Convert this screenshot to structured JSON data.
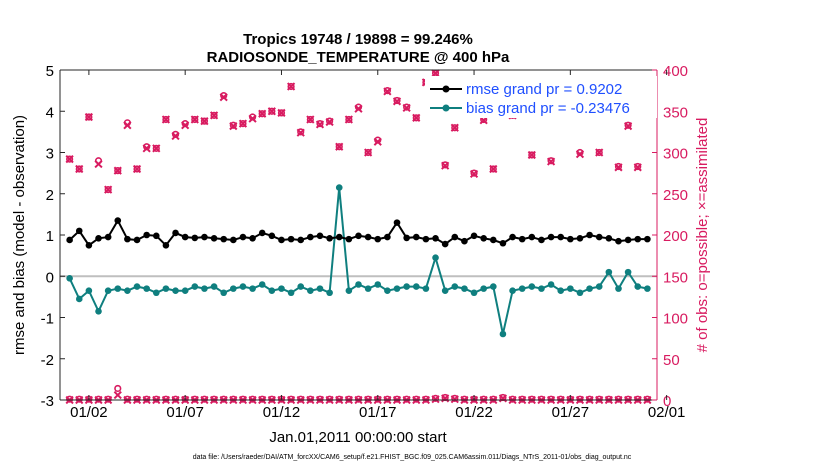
{
  "chart_data": {
    "type": "line",
    "title_line1": "Tropics 19748 / 19898 = 99.246%",
    "title_line2": "RADIOSONDE_TEMPERATURE @ 400 hPa",
    "xlabel": "Jan.01,2011 00:00:00 start",
    "ylabel_left": "rmse and bias (model - observation)",
    "ylabel_right": "# of obs: o=possible; ×=assimilated",
    "footnote": "data file: /Users/raeder/DAI/ATM_forcXX/CAM6_setup/f.e21.FHIST_BGC.f09_025.CAM6assim.011/Diags_NTrS_2011-01/obs_diag_output.nc",
    "xlim": [
      0.5,
      31.5
    ],
    "ylim_left": [
      -3,
      5
    ],
    "ylim_right": [
      0,
      400
    ],
    "x_tick_values": [
      2,
      7,
      12,
      17,
      22,
      27,
      32
    ],
    "x_tick_labels": [
      "01/02",
      "01/07",
      "01/12",
      "01/17",
      "01/22",
      "01/27",
      "02/01"
    ],
    "y_left_ticks": [
      "-3",
      "-2",
      "-1",
      "0",
      "1",
      "2",
      "3",
      "4",
      "5"
    ],
    "y_right_ticks": [
      "0",
      "50",
      "100",
      "150",
      "200",
      "250",
      "300",
      "350",
      "400"
    ],
    "colors": {
      "rmse": "#000000",
      "bias": "#0f7f7f",
      "nobs": "#d81b60",
      "axis_right": "#d81b60",
      "zero_line": "#bfbfbf",
      "legend_text": "#1f4fff"
    },
    "legend": [
      {
        "name": "rmse grand pr = 0.9202",
        "key": "rmse"
      },
      {
        "name": "bias grand pr = -0.23476",
        "key": "bias"
      }
    ],
    "series": [
      {
        "name": "rmse",
        "axis": "left",
        "x": [
          1.0,
          1.5,
          2.0,
          2.5,
          3.0,
          3.5,
          4.0,
          4.5,
          5.0,
          5.5,
          6.0,
          6.5,
          7.0,
          7.5,
          8.0,
          8.5,
          9.0,
          9.5,
          10.0,
          10.5,
          11.0,
          11.5,
          12.0,
          12.5,
          13.0,
          13.5,
          14.0,
          14.5,
          15.0,
          15.5,
          16.0,
          16.5,
          17.0,
          17.5,
          18.0,
          18.5,
          19.0,
          19.5,
          20.0,
          20.5,
          21.0,
          21.5,
          22.0,
          22.5,
          23.0,
          23.5,
          24.0,
          24.5,
          25.0,
          25.5,
          26.0,
          26.5,
          27.0,
          27.5,
          28.0,
          28.5,
          29.0,
          29.5,
          30.0,
          30.5,
          31.0
        ],
        "values": [
          0.88,
          1.1,
          0.75,
          0.92,
          0.95,
          1.35,
          0.9,
          0.88,
          1.0,
          0.98,
          0.75,
          1.05,
          0.95,
          0.93,
          0.95,
          0.92,
          0.9,
          0.88,
          0.95,
          0.92,
          1.05,
          0.98,
          0.88,
          0.9,
          0.88,
          0.95,
          0.98,
          0.92,
          0.95,
          0.9,
          0.98,
          0.95,
          0.9,
          0.95,
          1.3,
          0.93,
          0.95,
          0.9,
          0.92,
          0.78,
          0.95,
          0.85,
          0.98,
          0.92,
          0.88,
          0.8,
          0.95,
          0.9,
          0.95,
          0.88,
          0.95,
          0.95,
          0.9,
          0.92,
          1.0,
          0.95,
          0.92,
          0.85,
          0.88,
          0.9,
          0.9
        ]
      },
      {
        "name": "bias",
        "axis": "left",
        "x": [
          1.0,
          1.5,
          2.0,
          2.5,
          3.0,
          3.5,
          4.0,
          4.5,
          5.0,
          5.5,
          6.0,
          6.5,
          7.0,
          7.5,
          8.0,
          8.5,
          9.0,
          9.5,
          10.0,
          10.5,
          11.0,
          11.5,
          12.0,
          12.5,
          13.0,
          13.5,
          14.0,
          14.5,
          15.0,
          15.5,
          16.0,
          16.5,
          17.0,
          17.5,
          18.0,
          18.5,
          19.0,
          19.5,
          20.0,
          20.5,
          21.0,
          21.5,
          22.0,
          22.5,
          23.0,
          23.5,
          24.0,
          24.5,
          25.0,
          25.5,
          26.0,
          26.5,
          27.0,
          27.5,
          28.0,
          28.5,
          29.0,
          29.5,
          30.0,
          30.5,
          31.0
        ],
        "values": [
          -0.05,
          -0.55,
          -0.35,
          -0.85,
          -0.35,
          -0.3,
          -0.35,
          -0.25,
          -0.3,
          -0.4,
          -0.3,
          -0.35,
          -0.35,
          -0.25,
          -0.3,
          -0.25,
          -0.4,
          -0.3,
          -0.25,
          -0.3,
          -0.2,
          -0.35,
          -0.3,
          -0.4,
          -0.25,
          -0.35,
          -0.3,
          -0.4,
          2.15,
          -0.35,
          -0.2,
          -0.3,
          -0.2,
          -0.35,
          -0.3,
          -0.25,
          -0.25,
          -0.3,
          0.45,
          -0.35,
          -0.25,
          -0.3,
          -0.4,
          -0.3,
          -0.25,
          -1.4,
          -0.35,
          -0.3,
          -0.25,
          -0.3,
          -0.2,
          -0.35,
          -0.3,
          -0.4,
          -0.3,
          -0.25,
          0.1,
          -0.3,
          0.1,
          -0.25,
          -0.3
        ]
      },
      {
        "name": "nobs_possible",
        "axis": "right",
        "x": [
          1.0,
          1.5,
          2.0,
          2.5,
          3.0,
          3.5,
          4.0,
          4.5,
          5.0,
          5.5,
          6.0,
          6.5,
          7.0,
          7.5,
          8.0,
          8.5,
          9.0,
          9.5,
          10.0,
          10.5,
          11.0,
          11.5,
          12.0,
          12.5,
          13.0,
          13.5,
          14.0,
          14.5,
          15.0,
          15.5,
          16.0,
          16.5,
          17.0,
          17.5,
          18.0,
          18.5,
          19.0,
          19.5,
          20.0,
          20.5,
          21.0,
          21.5,
          22.0,
          22.5,
          23.0,
          23.5,
          24.0,
          24.5,
          25.0,
          25.5,
          26.0,
          26.5,
          27.0,
          27.5,
          28.0,
          28.5,
          29.0,
          29.5,
          30.0,
          30.5,
          31.0
        ],
        "values": [
          292,
          280,
          343,
          290,
          255,
          278,
          336,
          280,
          307,
          305,
          340,
          322,
          335,
          340,
          338,
          345,
          369,
          333,
          335,
          343,
          347,
          350,
          348,
          380,
          325,
          340,
          335,
          338,
          307,
          340,
          355,
          300,
          315,
          375,
          363,
          355,
          342,
          385,
          396,
          285,
          330,
          377,
          275,
          340,
          280,
          360,
          345,
          365,
          297,
          350,
          290,
          353,
          350,
          300,
          385,
          300,
          360,
          283,
          333,
          283,
          380
        ]
      },
      {
        "name": "nobs_assimilated",
        "axis": "right",
        "x": [
          1.0,
          1.5,
          2.0,
          2.5,
          3.0,
          3.5,
          4.0,
          4.5,
          5.0,
          5.5,
          6.0,
          6.5,
          7.0,
          7.5,
          8.0,
          8.5,
          9.0,
          9.5,
          10.0,
          10.5,
          11.0,
          11.5,
          12.0,
          12.5,
          13.0,
          13.5,
          14.0,
          14.5,
          15.0,
          15.5,
          16.0,
          16.5,
          17.0,
          17.5,
          18.0,
          18.5,
          19.0,
          19.5,
          20.0,
          20.5,
          21.0,
          21.5,
          22.0,
          22.5,
          23.0,
          23.5,
          24.0,
          24.5,
          25.0,
          25.5,
          26.0,
          26.5,
          27.0,
          27.5,
          28.0,
          28.5,
          29.0,
          29.5,
          30.0,
          30.5,
          31.0
        ],
        "values": [
          292,
          280,
          343,
          286,
          255,
          278,
          333,
          280,
          305,
          305,
          340,
          320,
          333,
          340,
          338,
          345,
          367,
          332,
          335,
          341,
          347,
          350,
          348,
          380,
          324,
          340,
          334,
          337,
          307,
          340,
          353,
          300,
          313,
          374,
          362,
          354,
          342,
          385,
          396,
          284,
          330,
          377,
          274,
          339,
          280,
          359,
          345,
          364,
          297,
          350,
          289,
          352,
          350,
          298,
          385,
          300,
          359,
          282,
          332,
          282,
          380
        ]
      },
      {
        "name": "nobs_rejected_possible",
        "axis": "right",
        "x": [
          1.0,
          1.5,
          2.0,
          2.5,
          3.0,
          3.5,
          4.0,
          4.5,
          5.0,
          5.5,
          6.0,
          6.5,
          7.0,
          7.5,
          8.0,
          8.5,
          9.0,
          9.5,
          10.0,
          10.5,
          11.0,
          11.5,
          12.0,
          12.5,
          13.0,
          13.5,
          14.0,
          14.5,
          15.0,
          15.5,
          16.0,
          16.5,
          17.0,
          17.5,
          18.0,
          18.5,
          19.0,
          19.5,
          20.0,
          20.5,
          21.0,
          21.5,
          22.0,
          22.5,
          23.0,
          23.5,
          24.0,
          24.5,
          25.0,
          25.5,
          26.0,
          26.5,
          27.0,
          27.5,
          28.0,
          28.5,
          29.0,
          29.5,
          30.0,
          30.5,
          31.0
        ],
        "values": [
          1,
          1,
          1,
          1,
          1,
          14,
          1,
          1,
          1,
          1,
          1,
          1,
          1,
          1,
          1,
          1,
          1,
          1,
          1,
          1,
          1,
          1,
          1,
          1,
          1,
          1,
          1,
          1,
          1,
          1,
          1,
          1,
          1,
          1,
          1,
          1,
          1,
          1,
          2,
          3,
          2,
          1,
          1,
          1,
          1,
          3,
          1,
          1,
          1,
          1,
          1,
          1,
          1,
          1,
          1,
          1,
          1,
          1,
          1,
          1,
          1
        ]
      },
      {
        "name": "nobs_rejected_assimilated",
        "axis": "right",
        "x": [
          1.0,
          1.5,
          2.0,
          2.5,
          3.0,
          3.5,
          4.0,
          4.5,
          5.0,
          5.5,
          6.0,
          6.5,
          7.0,
          7.5,
          8.0,
          8.5,
          9.0,
          9.5,
          10.0,
          10.5,
          11.0,
          11.5,
          12.0,
          12.5,
          13.0,
          13.5,
          14.0,
          14.5,
          15.0,
          15.5,
          16.0,
          16.5,
          17.0,
          17.5,
          18.0,
          18.5,
          19.0,
          19.5,
          20.0,
          20.5,
          21.0,
          21.5,
          22.0,
          22.5,
          23.0,
          23.5,
          24.0,
          24.5,
          25.0,
          25.5,
          26.0,
          26.5,
          27.0,
          27.5,
          28.0,
          28.5,
          29.0,
          29.5,
          30.0,
          30.5,
          31.0
        ],
        "values": [
          0,
          0,
          0,
          0,
          0,
          6,
          0,
          0,
          0,
          0,
          0,
          0,
          0,
          0,
          0,
          0,
          0,
          0,
          0,
          0,
          0,
          0,
          0,
          0,
          0,
          0,
          0,
          0,
          0,
          0,
          0,
          0,
          0,
          0,
          0,
          0,
          0,
          0,
          1,
          2,
          1,
          0,
          0,
          0,
          0,
          2,
          0,
          0,
          0,
          0,
          0,
          0,
          0,
          0,
          0,
          0,
          0,
          0,
          0,
          0,
          0
        ]
      }
    ]
  }
}
